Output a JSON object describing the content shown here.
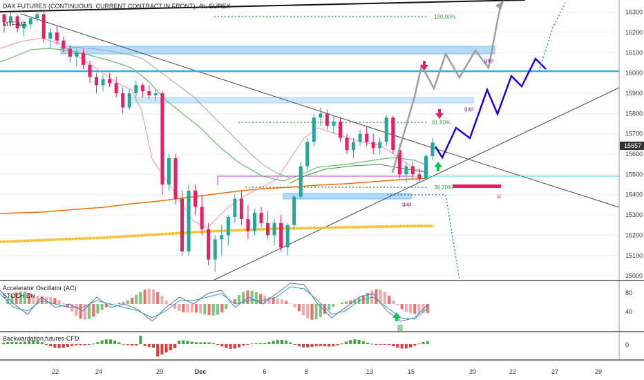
{
  "header": {
    "title": "DAX FUTURES (CONTINUOUS: CURRENT CONTRACT IN FRONT), 4h, EUREX",
    "indicator": "MTF-MA"
  },
  "annotations": {
    "fib_100": "100.00%",
    "fib_618": "61.80%",
    "fib_382": "38.20%",
    "gap_1": "gap",
    "gap_2": "gap",
    "gap_3": "gap",
    "sl": "sl",
    "price_tag": "15657"
  },
  "panes": {
    "ac_title": "Accelerator Oscillator (AC)",
    "stoch_title": "STOCH Div",
    "ac_ticks": [
      "80",
      "40"
    ],
    "back_title": "Backwardation,futures-CFD",
    "back_tick": "0"
  },
  "colors": {
    "up": "#26a69a",
    "down": "#e91e63",
    "blue_line": "#29b6f6",
    "projection": "#1a00e8",
    "orange": "#ef6c00",
    "yellow": "#fbc02d",
    "green_ma": "#5cb85c",
    "pink_ma": "#f48fb1"
  },
  "chart_data": {
    "type": "candlestick",
    "y_ticks": [
      16300,
      16200,
      16100,
      16000,
      15900,
      15800,
      15700,
      15600,
      15500,
      15400,
      15300,
      15200,
      15100,
      15000
    ],
    "ylim": [
      14980,
      16360
    ],
    "x_ticks": [
      "22",
      "24",
      "29",
      "Dec",
      "6",
      "8",
      "13",
      "15",
      "20",
      "22",
      "27",
      "29"
    ],
    "levels": {
      "blue_horizontal": 16020,
      "fib_100": 16290,
      "fib_618": 15775,
      "fib_382": 15460,
      "cyan_thin": 15500,
      "current_price": 15657
    },
    "candles": [
      [
        16290,
        16290,
        16200,
        16250
      ],
      [
        16250,
        16300,
        16230,
        16280
      ],
      [
        16280,
        16290,
        16200,
        16220
      ],
      [
        16220,
        16260,
        16180,
        16240
      ],
      [
        16240,
        16280,
        16220,
        16270
      ],
      [
        16270,
        16300,
        16250,
        16290
      ],
      [
        16290,
        16300,
        16150,
        16170
      ],
      [
        16170,
        16220,
        16120,
        16200
      ],
      [
        16200,
        16230,
        16140,
        16160
      ],
      [
        16160,
        16180,
        16100,
        16120
      ],
      [
        16120,
        16140,
        16050,
        16080
      ],
      [
        16080,
        16120,
        16030,
        16100
      ],
      [
        16100,
        16120,
        16020,
        16040
      ],
      [
        16040,
        16060,
        15950,
        15980
      ],
      [
        15980,
        16000,
        15900,
        15940
      ],
      [
        15940,
        15990,
        15910,
        15970
      ],
      [
        15970,
        16000,
        15930,
        15950
      ],
      [
        15950,
        15980,
        15880,
        15900
      ],
      [
        15900,
        15930,
        15800,
        15830
      ],
      [
        15830,
        15920,
        15820,
        15900
      ],
      [
        15900,
        15960,
        15880,
        15940
      ],
      [
        15940,
        15950,
        15880,
        15910
      ],
      [
        15910,
        15940,
        15870,
        15890
      ],
      [
        15890,
        15920,
        15860,
        15900
      ],
      [
        15900,
        15910,
        15400,
        15450
      ],
      [
        15450,
        15600,
        15420,
        15580
      ],
      [
        15580,
        15600,
        15350,
        15380
      ],
      [
        15380,
        15420,
        15100,
        15120
      ],
      [
        15120,
        15450,
        15100,
        15420
      ],
      [
        15420,
        15450,
        15300,
        15340
      ],
      [
        15340,
        15400,
        15200,
        15230
      ],
      [
        15230,
        15260,
        15050,
        15080
      ],
      [
        15080,
        15200,
        15020,
        15180
      ],
      [
        15180,
        15250,
        15100,
        15200
      ],
      [
        15200,
        15300,
        15150,
        15290
      ],
      [
        15290,
        15400,
        15260,
        15380
      ],
      [
        15380,
        15420,
        15250,
        15280
      ],
      [
        15280,
        15350,
        15180,
        15220
      ],
      [
        15220,
        15330,
        15200,
        15310
      ],
      [
        15310,
        15340,
        15240,
        15260
      ],
      [
        15260,
        15320,
        15180,
        15200
      ],
      [
        15200,
        15280,
        15150,
        15260
      ],
      [
        15260,
        15300,
        15120,
        15140
      ],
      [
        15140,
        15260,
        15100,
        15250
      ],
      [
        15250,
        15400,
        15230,
        15390
      ],
      [
        15390,
        15560,
        15380,
        15540
      ],
      [
        15540,
        15680,
        15520,
        15660
      ],
      [
        15660,
        15800,
        15640,
        15780
      ],
      [
        15780,
        15830,
        15740,
        15800
      ],
      [
        15800,
        15820,
        15720,
        15740
      ],
      [
        15740,
        15790,
        15700,
        15760
      ],
      [
        15760,
        15780,
        15660,
        15680
      ],
      [
        15680,
        15700,
        15600,
        15620
      ],
      [
        15620,
        15680,
        15580,
        15660
      ],
      [
        15660,
        15720,
        15640,
        15700
      ],
      [
        15700,
        15740,
        15640,
        15660
      ],
      [
        15660,
        15700,
        15600,
        15630
      ],
      [
        15630,
        15680,
        15600,
        15660
      ],
      [
        15660,
        15790,
        15640,
        15780
      ],
      [
        15780,
        15790,
        15600,
        15620
      ],
      [
        15620,
        15650,
        15480,
        15500
      ],
      [
        15500,
        15560,
        15460,
        15540
      ],
      [
        15540,
        15560,
        15480,
        15500
      ],
      [
        15500,
        15530,
        15460,
        15480
      ],
      [
        15480,
        15600,
        15470,
        15590
      ],
      [
        15590,
        15680,
        15570,
        15657
      ]
    ],
    "projection_blue": [
      [
        15657,
        15600
      ],
      [
        15740,
        15850
      ],
      [
        15700,
        15950
      ],
      [
        15830,
        16040
      ],
      [
        15990,
        16060
      ],
      [
        16000,
        16090
      ]
    ]
  }
}
